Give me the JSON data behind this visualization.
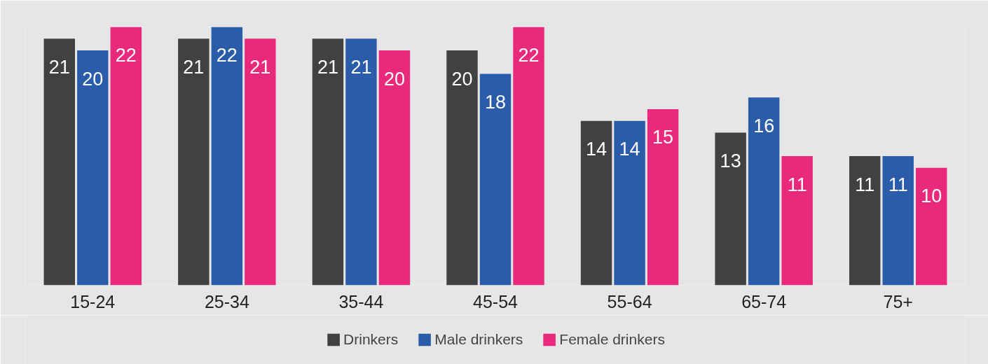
{
  "chart_data": {
    "type": "bar",
    "categories": [
      "15-24",
      "25-34",
      "35-44",
      "45-54",
      "55-64",
      "65-74",
      "75+"
    ],
    "series": [
      {
        "name": "Drinkers",
        "color": "#414141",
        "values": [
          21,
          21,
          21,
          20,
          14,
          13,
          11
        ]
      },
      {
        "name": "Male drinkers",
        "color": "#2a5caa",
        "values": [
          20,
          22,
          21,
          18,
          14,
          16,
          11
        ]
      },
      {
        "name": "Female drinkers",
        "color": "#e9297b",
        "values": [
          22,
          21,
          20,
          22,
          15,
          11,
          10
        ]
      }
    ],
    "ylim": [
      0,
      22
    ],
    "tick_labels": "x",
    "grid": false,
    "legend": "bottom",
    "data_labels": true
  }
}
